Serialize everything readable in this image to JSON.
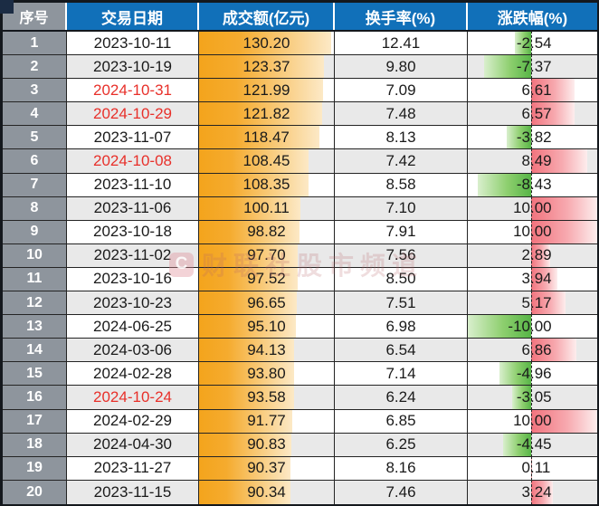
{
  "watermark": {
    "logo_letter": "C",
    "text": "财联社股市频道"
  },
  "colors": {
    "header_bg": "#1170b9",
    "index_column_bg": "#8e959d",
    "row_alt_bg": "#e9e9e9",
    "highlight_date_red": "#e8302a",
    "amount_bar_orange": "#f4a41c",
    "change_up_bar_red": "#f1737d",
    "change_down_bar_green": "#57b547"
  },
  "chart_data": {
    "type": "table",
    "columns": [
      "序号",
      "交易日期",
      "成交额(亿元)",
      "换手率(%)",
      "涨跌幅(%)"
    ],
    "rows": [
      [
        "1",
        "2023-10-11",
        "130.20",
        "12.41",
        "-2.54"
      ],
      [
        "2",
        "2023-10-19",
        "123.37",
        "9.80",
        "-7.37"
      ],
      [
        "3",
        "2024-10-31",
        "121.99",
        "7.09",
        "6.61"
      ],
      [
        "4",
        "2024-10-29",
        "121.82",
        "7.48",
        "6.57"
      ],
      [
        "5",
        "2023-11-07",
        "118.47",
        "8.13",
        "-3.82"
      ],
      [
        "6",
        "2024-10-08",
        "108.45",
        "7.42",
        "8.49"
      ],
      [
        "7",
        "2023-11-10",
        "108.35",
        "8.58",
        "-8.43"
      ],
      [
        "8",
        "2023-11-06",
        "100.11",
        "7.10",
        "10.00"
      ],
      [
        "9",
        "2023-10-18",
        "98.82",
        "7.91",
        "10.00"
      ],
      [
        "10",
        "2023-11-02",
        "97.70",
        "7.56",
        "2.89"
      ],
      [
        "11",
        "2023-10-16",
        "97.52",
        "8.50",
        "3.94"
      ],
      [
        "12",
        "2023-10-23",
        "96.65",
        "7.51",
        "5.17"
      ],
      [
        "13",
        "2024-06-25",
        "95.10",
        "6.98",
        "-10.00"
      ],
      [
        "14",
        "2024-03-06",
        "94.13",
        "6.54",
        "6.86"
      ],
      [
        "15",
        "2024-02-28",
        "93.80",
        "7.14",
        "-4.96"
      ],
      [
        "16",
        "2024-10-24",
        "93.58",
        "6.24",
        "-3.05"
      ],
      [
        "17",
        "2024-02-29",
        "91.77",
        "6.85",
        "10.00"
      ],
      [
        "18",
        "2024-04-30",
        "90.83",
        "6.25",
        "-4.45"
      ],
      [
        "19",
        "2023-11-27",
        "90.37",
        "8.16",
        "0.11"
      ],
      [
        "20",
        "2023-11-15",
        "90.34",
        "7.46",
        "3.24"
      ]
    ],
    "highlighted_dates": [
      "2024-10-31",
      "2024-10-29",
      "2024-10-08",
      "2024-10-24"
    ],
    "amount_bar_scale_max": 133,
    "change_bar_range": [
      -10,
      10
    ]
  }
}
